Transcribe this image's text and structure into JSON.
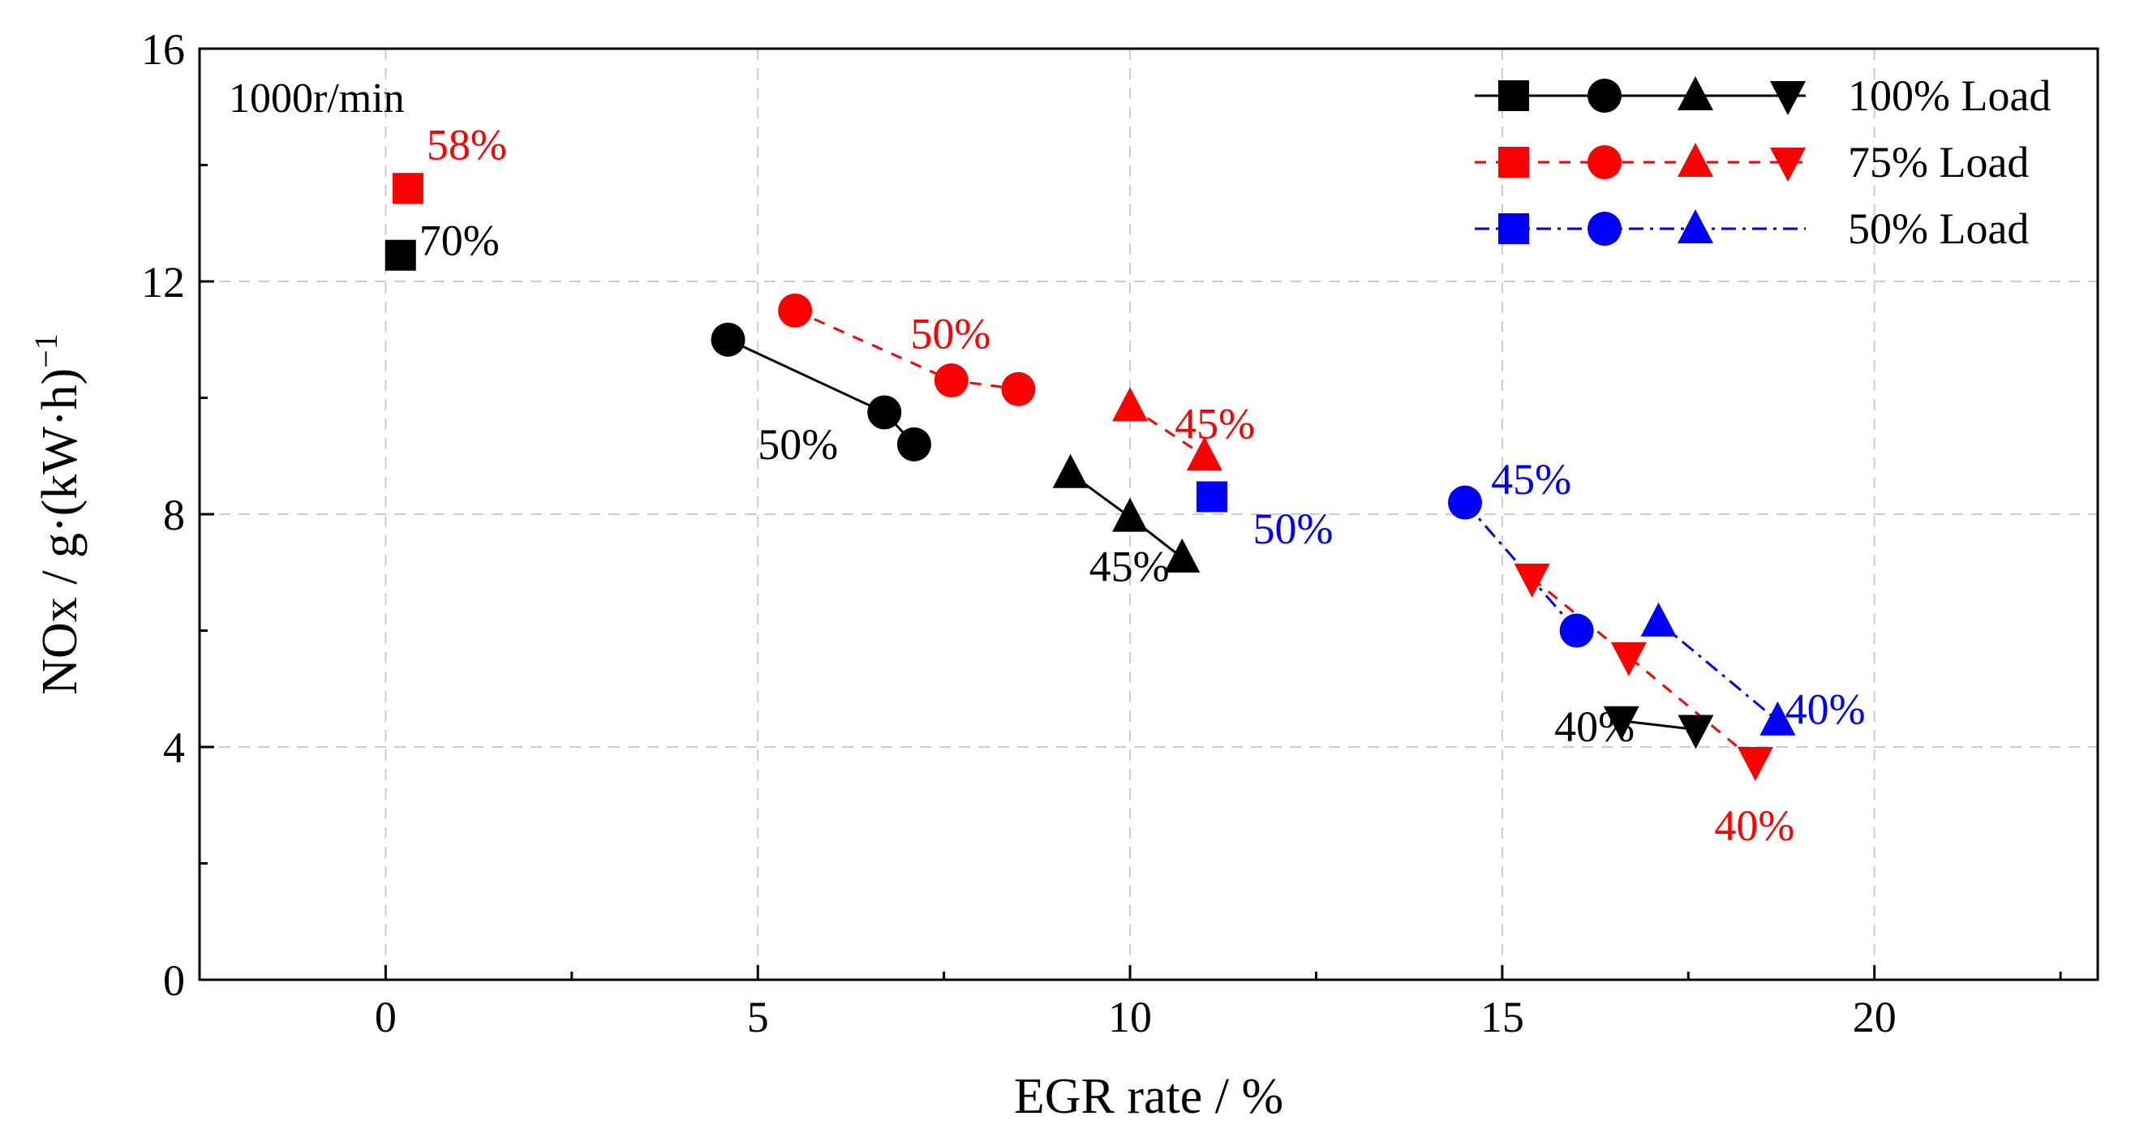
{
  "chart_data": {
    "type": "scatter",
    "xlabel": "EGR rate / %",
    "ylabel_main": "NOx / g·(kW·h)",
    "ylabel_sup": "−1",
    "xlim": [
      -2.5,
      23
    ],
    "ylim": [
      0,
      16
    ],
    "xticks": [
      0,
      5,
      10,
      15,
      20
    ],
    "yticks": [
      0,
      4,
      8,
      12,
      16
    ],
    "xtick_labels": [
      "0",
      "5",
      "10",
      "15",
      "20"
    ],
    "ytick_labels": [
      "0",
      "4",
      "8",
      "12",
      "16"
    ],
    "grid": true,
    "inner_label": "1000r/min",
    "legend_position": "top-right",
    "series": [
      {
        "name": "100% Load",
        "color": "#000000",
        "line": "solid",
        "groups": [
          {
            "marker": "square",
            "connected": false,
            "points": [
              [
                0.2,
                12.45
              ]
            ]
          },
          {
            "marker": "circle",
            "connected": true,
            "points": [
              [
                4.6,
                11.0
              ],
              [
                6.7,
                9.75
              ],
              [
                7.1,
                9.2
              ]
            ]
          },
          {
            "marker": "triangle-up",
            "connected": true,
            "points": [
              [
                9.2,
                8.7
              ],
              [
                10.0,
                7.95
              ],
              [
                10.7,
                7.25
              ]
            ]
          },
          {
            "marker": "triangle-down",
            "connected": true,
            "points": [
              [
                16.6,
                4.45
              ],
              [
                17.6,
                4.3
              ]
            ]
          }
        ]
      },
      {
        "name": "75% Load",
        "color": "#ff0000",
        "line": "dashed",
        "groups": [
          {
            "marker": "square",
            "connected": false,
            "points": [
              [
                0.3,
                13.6
              ]
            ]
          },
          {
            "marker": "circle",
            "connected": true,
            "points": [
              [
                5.5,
                11.5
              ],
              [
                7.6,
                10.3
              ],
              [
                8.5,
                10.15
              ]
            ]
          },
          {
            "marker": "triangle-up",
            "connected": true,
            "points": [
              [
                10.0,
                9.85
              ],
              [
                11.0,
                9.0
              ]
            ]
          },
          {
            "marker": "triangle-down",
            "connected": true,
            "points": [
              [
                15.4,
                6.9
              ],
              [
                16.7,
                5.55
              ],
              [
                18.4,
                3.75
              ]
            ]
          }
        ]
      },
      {
        "name": "50% Load",
        "color": "#0000ff",
        "line": "dashdot",
        "groups": [
          {
            "marker": "square",
            "connected": false,
            "points": [
              [
                11.1,
                8.3
              ]
            ]
          },
          {
            "marker": "circle",
            "connected": true,
            "points": [
              [
                14.5,
                8.2
              ],
              [
                16.0,
                6.0
              ]
            ]
          },
          {
            "marker": "triangle-up",
            "connected": true,
            "points": [
              [
                17.1,
                6.15
              ],
              [
                18.7,
                4.45
              ]
            ]
          }
        ]
      }
    ],
    "annotations": [
      {
        "text": "58%",
        "x": 0.55,
        "y": 14.1,
        "color": "#ff0000"
      },
      {
        "text": "70%",
        "x": 0.45,
        "y": 12.45,
        "color": "#000000"
      },
      {
        "text": "50%",
        "x": 7.05,
        "y": 10.85,
        "color": "#ff0000"
      },
      {
        "text": "50%",
        "x": 5.0,
        "y": 8.95,
        "color": "#000000"
      },
      {
        "text": "45%",
        "x": 10.6,
        "y": 9.3,
        "color": "#ff0000"
      },
      {
        "text": "50%",
        "x": 11.65,
        "y": 7.5,
        "color": "#0000ff"
      },
      {
        "text": "45%",
        "x": 9.45,
        "y": 6.85,
        "color": "#000000"
      },
      {
        "text": "45%",
        "x": 14.85,
        "y": 8.35,
        "color": "#0000ff"
      },
      {
        "text": "40%",
        "x": 15.7,
        "y": 4.1,
        "color": "#000000"
      },
      {
        "text": "40%",
        "x": 18.8,
        "y": 4.4,
        "color": "#0000ff"
      },
      {
        "text": "40%",
        "x": 17.85,
        "y": 2.4,
        "color": "#ff0000"
      }
    ]
  }
}
